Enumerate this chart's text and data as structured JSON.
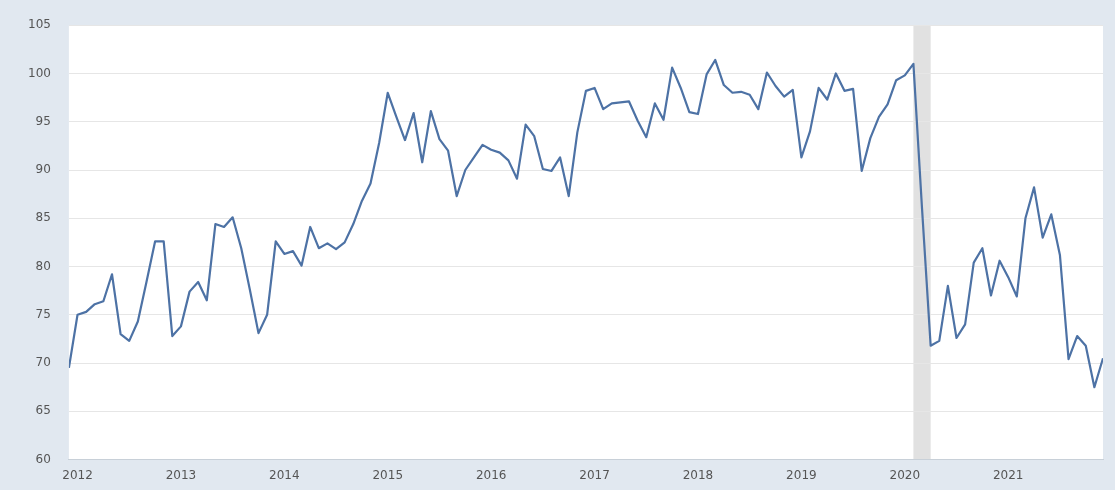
{
  "chart_data": {
    "type": "line",
    "x": [
      "2011-12",
      "2012-01",
      "2012-02",
      "2012-03",
      "2012-04",
      "2012-05",
      "2012-06",
      "2012-07",
      "2012-08",
      "2012-09",
      "2012-10",
      "2012-11",
      "2012-12",
      "2013-01",
      "2013-02",
      "2013-03",
      "2013-04",
      "2013-05",
      "2013-06",
      "2013-07",
      "2013-08",
      "2013-09",
      "2013-10",
      "2013-11",
      "2013-12",
      "2014-01",
      "2014-02",
      "2014-03",
      "2014-04",
      "2014-05",
      "2014-06",
      "2014-07",
      "2014-08",
      "2014-09",
      "2014-10",
      "2014-11",
      "2014-12",
      "2015-01",
      "2015-02",
      "2015-03",
      "2015-04",
      "2015-05",
      "2015-06",
      "2015-07",
      "2015-08",
      "2015-09",
      "2015-10",
      "2015-11",
      "2015-12",
      "2016-01",
      "2016-02",
      "2016-03",
      "2016-04",
      "2016-05",
      "2016-06",
      "2016-07",
      "2016-08",
      "2016-09",
      "2016-10",
      "2016-11",
      "2016-12",
      "2017-01",
      "2017-02",
      "2017-03",
      "2017-04",
      "2017-05",
      "2017-06",
      "2017-07",
      "2017-08",
      "2017-09",
      "2017-10",
      "2017-11",
      "2017-12",
      "2018-01",
      "2018-02",
      "2018-03",
      "2018-04",
      "2018-05",
      "2018-06",
      "2018-07",
      "2018-08",
      "2018-09",
      "2018-10",
      "2018-11",
      "2018-12",
      "2019-01",
      "2019-02",
      "2019-03",
      "2019-04",
      "2019-05",
      "2019-06",
      "2019-07",
      "2019-08",
      "2019-09",
      "2019-10",
      "2019-11",
      "2019-12",
      "2020-01",
      "2020-02",
      "2020-03",
      "2020-04",
      "2020-05",
      "2020-06",
      "2020-07",
      "2020-08",
      "2020-09",
      "2020-10",
      "2020-11",
      "2020-12",
      "2021-01",
      "2021-02",
      "2021-03",
      "2021-04",
      "2021-05",
      "2021-06",
      "2021-07",
      "2021-08",
      "2021-09",
      "2021-10",
      "2021-11",
      "2021-12"
    ],
    "series": [
      {
        "color": "#4d72a5",
        "values": [
          69.5,
          75,
          75.3,
          76.1,
          76.4,
          79.2,
          73,
          72.3,
          74.3,
          78.4,
          82.6,
          82.6,
          72.8,
          73.8,
          77.4,
          78.4,
          76.5,
          84.4,
          84.1,
          85.1,
          81.9,
          77.6,
          73.1,
          75,
          82.6,
          81.3,
          81.6,
          80.1,
          84.1,
          81.9,
          82.4,
          81.8,
          82.5,
          84.4,
          86.8,
          88.6,
          92.8,
          98,
          95.5,
          93.1,
          95.9,
          90.8,
          96.1,
          93.2,
          92,
          87.3,
          90,
          91.3,
          92.6,
          92.1,
          91.8,
          91,
          89.1,
          94.7,
          93.5,
          90.1,
          89.9,
          91.3,
          87.3,
          93.9,
          98.2,
          98.5,
          96.3,
          96.9,
          97,
          97.1,
          95.1,
          93.4,
          96.9,
          95.2,
          100.6,
          98.5,
          96,
          95.8,
          99.9,
          101.4,
          98.8,
          98,
          98.1,
          97.8,
          96.3,
          100.1,
          98.7,
          97.6,
          98.3,
          91.3,
          94,
          98.5,
          97.3,
          100,
          98.2,
          98.4,
          89.9,
          93.3,
          95.5,
          96.8,
          99.3,
          99.8,
          101,
          86,
          71.8,
          72.3,
          78,
          72.6,
          74,
          80.4,
          81.9,
          77,
          80.6,
          78.9,
          76.9,
          85,
          88.2,
          83,
          85.4,
          81.2,
          70.4,
          72.8,
          71.8,
          67.5,
          70.5
        ]
      }
    ],
    "xlim": [
      "2011-12",
      "2021-12"
    ],
    "xticks": [
      {
        "value": "2012",
        "label": "2012"
      },
      {
        "value": "2013",
        "label": "2013"
      },
      {
        "value": "2014",
        "label": "2014"
      },
      {
        "value": "2015",
        "label": "2015"
      },
      {
        "value": "2016",
        "label": "2016"
      },
      {
        "value": "2017",
        "label": "2017"
      },
      {
        "value": "2018",
        "label": "2018"
      },
      {
        "value": "2019",
        "label": "2019"
      },
      {
        "value": "2020",
        "label": "2020"
      },
      {
        "value": "2021",
        "label": "2021"
      }
    ],
    "ylim": [
      60,
      105
    ],
    "yticks": [
      60,
      65,
      70,
      75,
      80,
      85,
      90,
      95,
      100,
      105
    ],
    "bands": [
      {
        "axis": "x",
        "from": "2020-02",
        "to": "2020-04",
        "color": "#e1e1e1"
      }
    ],
    "grid": "y",
    "legend": false,
    "marker": "none",
    "line_style": "solid"
  }
}
